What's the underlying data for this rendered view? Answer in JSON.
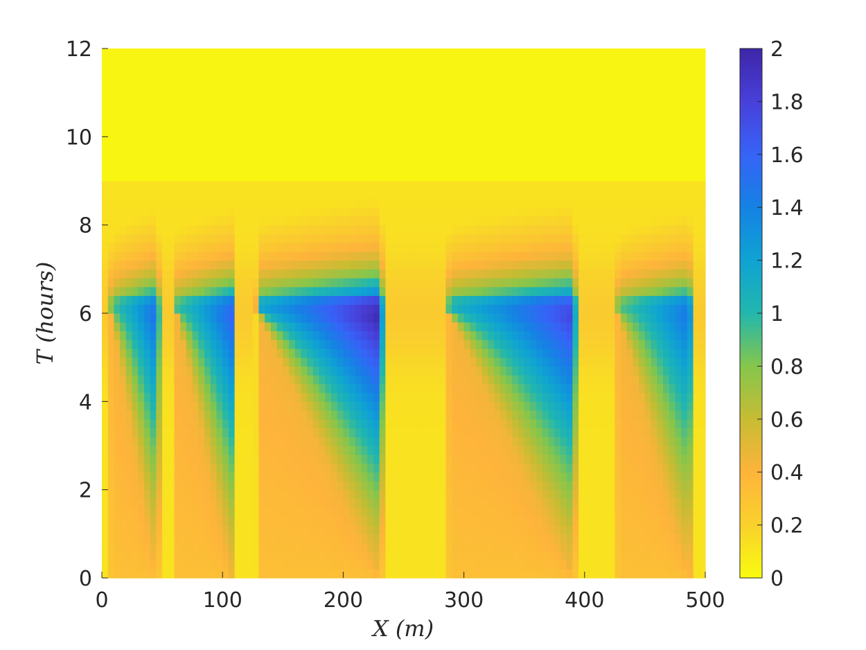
{
  "chart_data": {
    "type": "heatmap",
    "title": "",
    "xlabel": "X (m)",
    "ylabel": "T (hours)",
    "xlim": [
      0,
      500
    ],
    "ylim": [
      0,
      12
    ],
    "x_ticks": [
      "0",
      "100",
      "200",
      "300",
      "400",
      "500"
    ],
    "y_ticks": [
      "0",
      "2",
      "4",
      "6",
      "8",
      "10",
      "12"
    ],
    "colorbar": {
      "ticks": [
        "0",
        "0.2",
        "0.4",
        "0.6",
        "0.8",
        "1",
        "1.2",
        "1.4",
        "1.6",
        "1.8",
        "2"
      ],
      "range": [
        0,
        2
      ],
      "colormap": "parula"
    },
    "grid": false,
    "field_description": "Values near 0 everywhere except five vertical bands; in each band value rises with time from 0 at T=0 up to a peak near T=6 hours at the downstream (right) edge, then decays to 0 by about T=9 hours.",
    "bands": [
      {
        "x_start": 8,
        "x_end": 46,
        "peak": 1.55,
        "peak_t": 6.0
      },
      {
        "x_start": 62,
        "x_end": 108,
        "peak": 1.6,
        "peak_t": 6.0
      },
      {
        "x_start": 130,
        "x_end": 231,
        "peak": 2.0,
        "peak_t": 6.0
      },
      {
        "x_start": 288,
        "x_end": 391,
        "peak": 1.8,
        "peak_t": 6.0
      },
      {
        "x_start": 428,
        "x_end": 487,
        "peak": 1.5,
        "peak_t": 6.0
      }
    ]
  }
}
